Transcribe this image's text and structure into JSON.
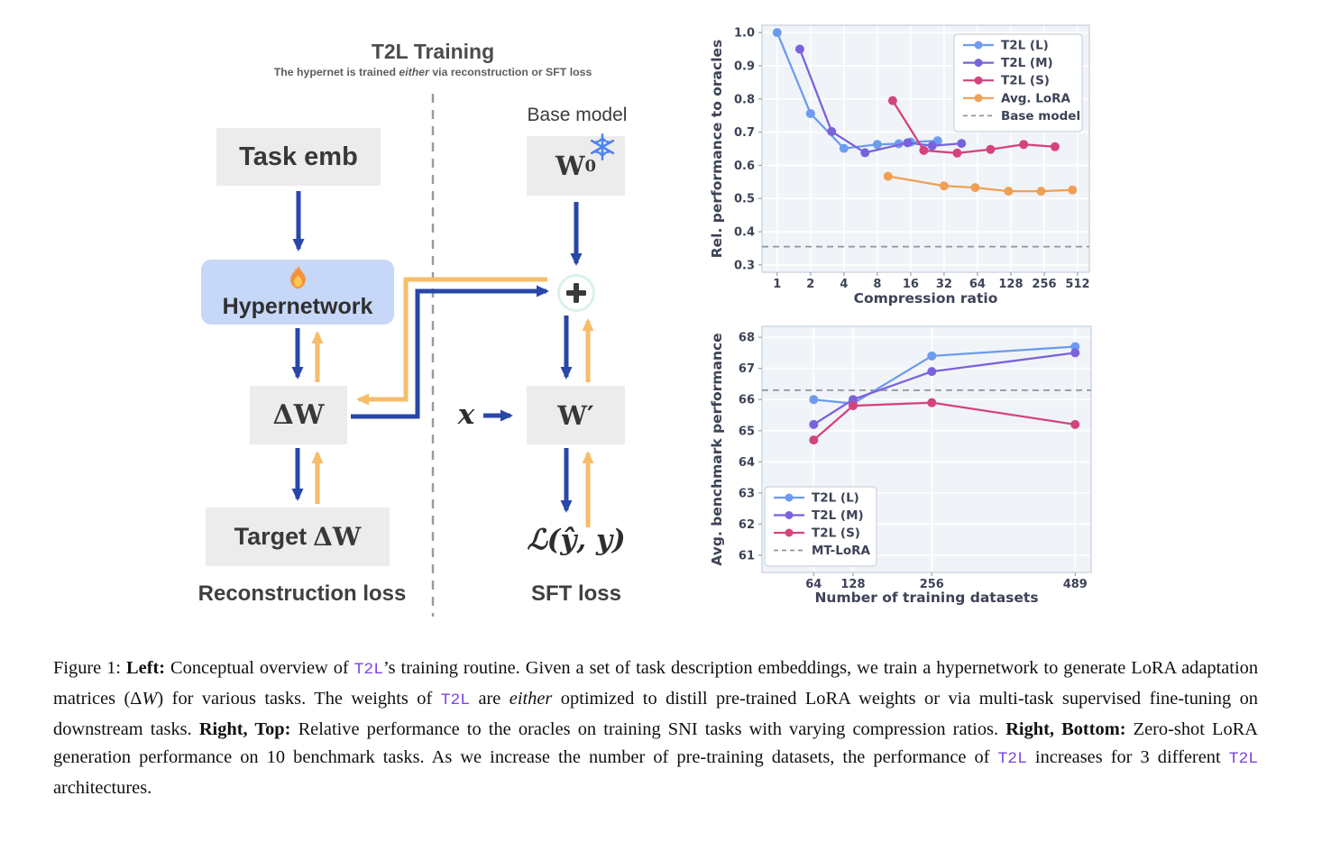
{
  "diagram": {
    "title": "T2L Training",
    "subtitle_pre": "The hypernet is trained ",
    "subtitle_em": "either",
    "subtitle_post": " via reconstruction or SFT loss",
    "base_model_label": "Base model",
    "boxes": {
      "task_emb": "Task emb",
      "hypernetwork": "Hypernetwork",
      "delta_w": "ΔW",
      "target_prefix": "Target",
      "target_math": "ΔW",
      "w0_main": "W",
      "w0_sub": "0",
      "w_prime": "W′",
      "x_input": "x",
      "loss_math": "ℒ(ŷ, y)",
      "plus": "+"
    },
    "loss_labels": {
      "left": "Reconstruction loss",
      "right": "SFT loss"
    },
    "icons": [
      "fire-icon",
      "snowflake-icon",
      "plus-icon"
    ],
    "colors": {
      "arrow_blue": "#2847a8",
      "arrow_orange": "#f6bd69",
      "hyper_fill": "#c6d7f7",
      "box_fill": "#ececec",
      "divider": "#9a9a9a",
      "plus_ring": "#d9f2e6",
      "snowflake": "#4f82f0"
    }
  },
  "chart_data": [
    {
      "type": "line",
      "xlabel": "Compression ratio",
      "ylabel": "Rel. performance to oracles",
      "xscale": "log2",
      "xlim": [
        0.73,
        653
      ],
      "ylim": [
        0.278,
        1.022
      ],
      "xticks": [
        1,
        2,
        4,
        8,
        16,
        32,
        64,
        128,
        256,
        512
      ],
      "xtick_labels": [
        "1",
        "2",
        "4",
        "8",
        "16",
        "32",
        "64",
        "128",
        "256",
        "512"
      ],
      "yticks": [
        0.3,
        0.4,
        0.5,
        0.6,
        0.7,
        0.8,
        0.9,
        1.0
      ],
      "ytick_labels": [
        "0.3",
        "0.4",
        "0.5",
        "0.6",
        "0.7",
        "0.8",
        "0.9",
        "1.0"
      ],
      "grid": true,
      "legend_position": "top-right",
      "series": [
        {
          "name": "T2L (L)",
          "color": "#6d9bef",
          "x": [
            1,
            2,
            4,
            8,
            12.5,
            16,
            28
          ],
          "y": [
            1.0,
            0.756,
            0.651,
            0.663,
            0.665,
            0.67,
            0.674
          ]
        },
        {
          "name": "T2L (M)",
          "color": "#7b62dd",
          "x": [
            1.6,
            3.1,
            6.2,
            15,
            25,
            46
          ],
          "y": [
            0.95,
            0.702,
            0.638,
            0.668,
            0.659,
            0.666
          ]
        },
        {
          "name": "T2L (S)",
          "color": "#d5437e",
          "x": [
            11,
            21,
            42,
            84,
            167,
            320
          ],
          "y": [
            0.795,
            0.645,
            0.637,
            0.648,
            0.663,
            0.656
          ]
        },
        {
          "name": "Avg. LoRA",
          "color": "#f0a055",
          "x": [
            10,
            32,
            61,
            122,
            240,
            460
          ],
          "y": [
            0.567,
            0.538,
            0.533,
            0.522,
            0.522,
            0.526
          ]
        }
      ],
      "hline": {
        "label": "Base model",
        "value": 0.355,
        "color": "#8f969e"
      }
    },
    {
      "type": "line",
      "xlabel": "Number of training datasets",
      "ylabel": "Avg. benchmark performance",
      "xscale": "linear",
      "xlim": [
        -20,
        515
      ],
      "ylim": [
        60.45,
        68.35
      ],
      "xticks": [
        64,
        128,
        256,
        489
      ],
      "xtick_labels": [
        "64",
        "128",
        "256",
        "489"
      ],
      "yticks": [
        61,
        62,
        63,
        64,
        65,
        66,
        67,
        68
      ],
      "ytick_labels": [
        "61",
        "62",
        "63",
        "64",
        "65",
        "66",
        "67",
        "68"
      ],
      "grid": true,
      "legend_position": "bottom-left",
      "series": [
        {
          "name": "T2L (L)",
          "color": "#6d9bef",
          "x": [
            64,
            128,
            256,
            489
          ],
          "y": [
            66.0,
            65.87,
            67.4,
            67.7
          ]
        },
        {
          "name": "T2L (M)",
          "color": "#7b62dd",
          "x": [
            64,
            128,
            256,
            489
          ],
          "y": [
            65.2,
            66.0,
            66.9,
            67.5
          ]
        },
        {
          "name": "T2L (S)",
          "color": "#d5437e",
          "x": [
            64,
            128,
            256,
            489
          ],
          "y": [
            64.7,
            65.8,
            65.9,
            65.2
          ]
        }
      ],
      "hline": {
        "label": "MT-LoRA",
        "value": 66.3,
        "color": "#8f969e"
      }
    }
  ],
  "caption": {
    "mono_color": "#7d44e0",
    "segments": [
      {
        "s": "plain",
        "t": "Figure 1: "
      },
      {
        "s": "bold",
        "t": "Left:"
      },
      {
        "s": "plain",
        "t": " Conceptual overview of "
      },
      {
        "s": "mono",
        "t": "T2L"
      },
      {
        "s": "plain",
        "t": "’s training routine. Given a set of task description embeddings, we train a hypernetwork to generate LoRA adaptation matrices (Δ"
      },
      {
        "s": "mathit",
        "t": "W"
      },
      {
        "s": "plain",
        "t": ") for various tasks. The weights of "
      },
      {
        "s": "mono",
        "t": "T2L"
      },
      {
        "s": "plain",
        "t": " are "
      },
      {
        "s": "italic",
        "t": "either"
      },
      {
        "s": "plain",
        "t": " optimized to distill pre-trained LoRA weights or via multi-task supervised fine-tuning on downstream tasks. "
      },
      {
        "s": "bold",
        "t": "Right, Top:"
      },
      {
        "s": "plain",
        "t": " Relative performance to the oracles on training SNI tasks with varying compression ratios. "
      },
      {
        "s": "bold",
        "t": "Right, Bottom:"
      },
      {
        "s": "plain",
        "t": " Zero-shot LoRA generation performance on 10 benchmark tasks. As we increase the number of pre-training datasets, the performance of "
      },
      {
        "s": "mono",
        "t": "T2L"
      },
      {
        "s": "plain",
        "t": " increases for 3 different "
      },
      {
        "s": "mono",
        "t": "T2L"
      },
      {
        "s": "plain",
        "t": " architectures."
      }
    ]
  }
}
